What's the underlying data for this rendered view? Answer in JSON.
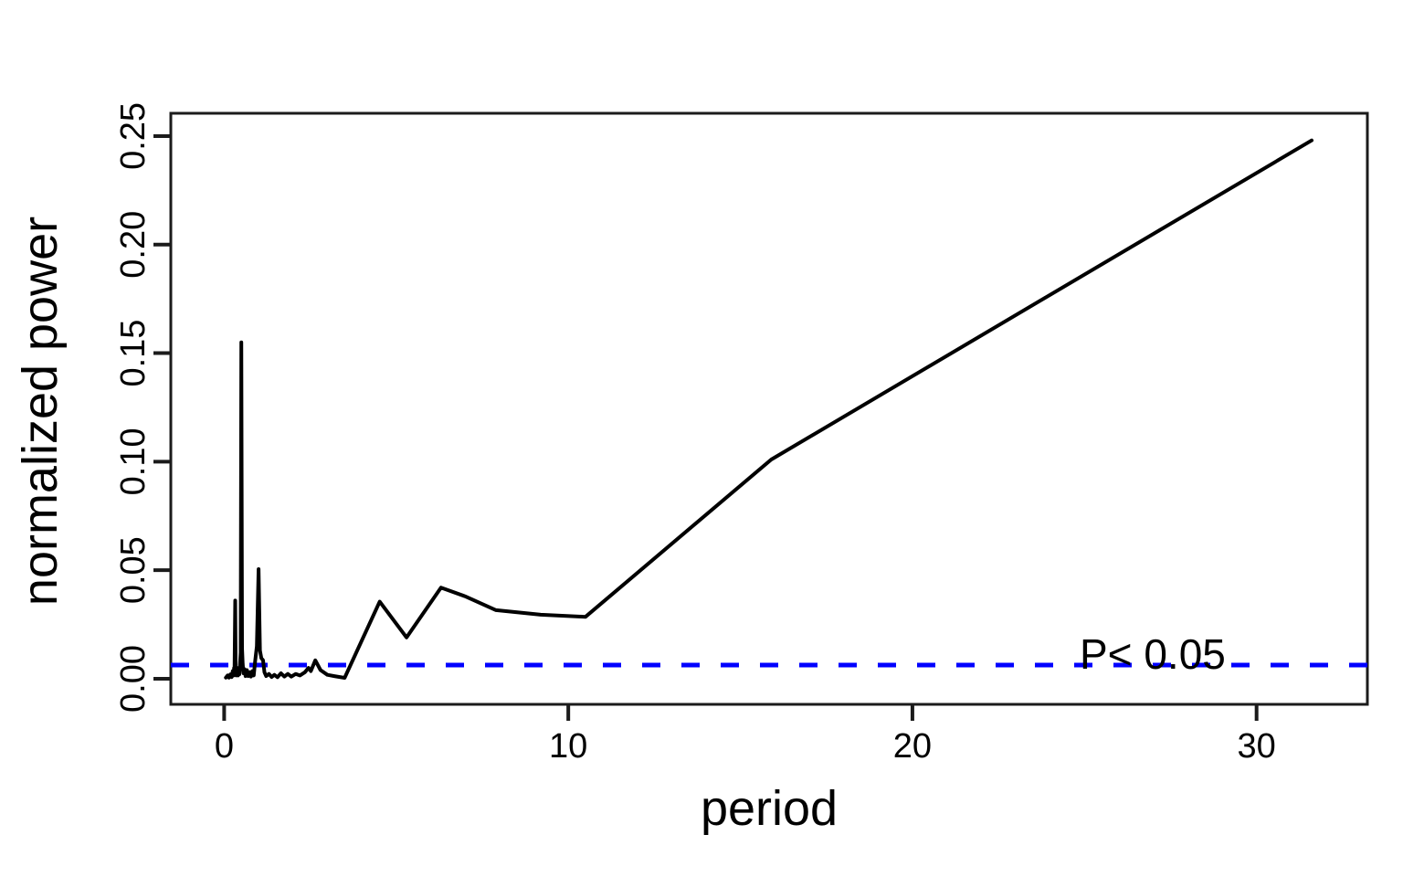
{
  "chart_data": {
    "type": "line",
    "title": "",
    "xlabel": "period",
    "ylabel": "normalized power",
    "x_ticks": {
      "values": [
        0,
        10,
        20,
        30
      ],
      "labels": [
        "0",
        "10",
        "20",
        "30"
      ]
    },
    "y_ticks": {
      "values": [
        0,
        0.05,
        0.1,
        0.15,
        0.2,
        0.25
      ],
      "labels": [
        "0.00",
        "0.05",
        "0.10",
        "0.15",
        "0.20",
        "0.25"
      ]
    },
    "xlim": [
      -1.55,
      33.22
    ],
    "ylim": [
      -0.0118,
      0.2605
    ],
    "grid": false,
    "legend": null,
    "background_color": "#FFFFFF",
    "axis_color": "#1B1B1B",
    "line_color": "#000000",
    "threshold_line": {
      "label": "P< 0.05",
      "value": 0.0063,
      "color": "#0000FF",
      "style": "dashed"
    },
    "series": [
      {
        "name": "normalized power",
        "points": [
          [
            0.05,
            0.0005
          ],
          [
            0.1,
            0.0015
          ],
          [
            0.14,
            0.0005
          ],
          [
            0.18,
            0.002
          ],
          [
            0.22,
            0.0008
          ],
          [
            0.25,
            0.0035
          ],
          [
            0.27,
            0.0015
          ],
          [
            0.29,
            0.005
          ],
          [
            0.3,
            0.002
          ],
          [
            0.32,
            0.036
          ],
          [
            0.335,
            0.006
          ],
          [
            0.35,
            0.0015
          ],
          [
            0.38,
            0.004
          ],
          [
            0.4,
            0.0015
          ],
          [
            0.42,
            0.005
          ],
          [
            0.44,
            0.002
          ],
          [
            0.46,
            0.0065
          ],
          [
            0.48,
            0.012
          ],
          [
            0.5,
            0.155
          ],
          [
            0.52,
            0.014
          ],
          [
            0.54,
            0.007
          ],
          [
            0.56,
            0.0025
          ],
          [
            0.59,
            0.0045
          ],
          [
            0.62,
            0.0012
          ],
          [
            0.66,
            0.004
          ],
          [
            0.7,
            0.0012
          ],
          [
            0.74,
            0.003
          ],
          [
            0.78,
            0.001
          ],
          [
            0.82,
            0.0035
          ],
          [
            0.86,
            0.0015
          ],
          [
            0.9,
            0.008
          ],
          [
            0.95,
            0.015
          ],
          [
            1.0,
            0.0505
          ],
          [
            1.04,
            0.013
          ],
          [
            1.08,
            0.0095
          ],
          [
            1.13,
            0.0085
          ],
          [
            1.17,
            0.003
          ],
          [
            1.22,
            0.0012
          ],
          [
            1.3,
            0.0022
          ],
          [
            1.38,
            0.0008
          ],
          [
            1.46,
            0.0018
          ],
          [
            1.55,
            0.0007
          ],
          [
            1.65,
            0.0025
          ],
          [
            1.75,
            0.001
          ],
          [
            1.85,
            0.0022
          ],
          [
            1.95,
            0.001
          ],
          [
            2.08,
            0.0022
          ],
          [
            2.2,
            0.0015
          ],
          [
            2.35,
            0.003
          ],
          [
            2.45,
            0.005
          ],
          [
            2.52,
            0.0035
          ],
          [
            2.65,
            0.0085
          ],
          [
            2.8,
            0.004
          ],
          [
            3.0,
            0.0018
          ],
          [
            3.2,
            0.0012
          ],
          [
            3.5,
            0.0004
          ],
          [
            4.52,
            0.0355
          ],
          [
            5.3,
            0.019
          ],
          [
            6.3,
            0.042
          ],
          [
            7.0,
            0.038
          ],
          [
            7.9,
            0.0316
          ],
          [
            9.2,
            0.0295
          ],
          [
            10.5,
            0.0285
          ],
          [
            15.9,
            0.101
          ],
          [
            31.6,
            0.248
          ]
        ]
      }
    ]
  }
}
